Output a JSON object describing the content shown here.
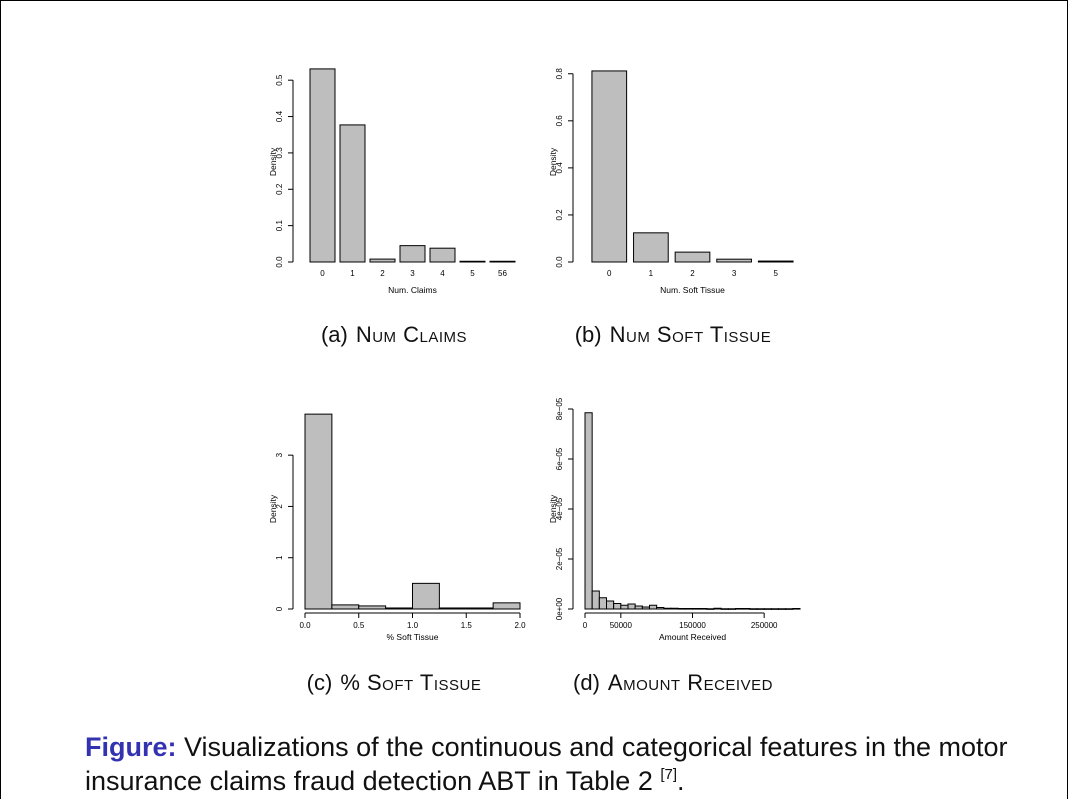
{
  "caption": {
    "label": "Figure:",
    "text": "Visualizations of the continuous and categorical features in the motor insurance claims fraud detection ABT in Table 2",
    "ref": "[7]",
    "end": "."
  },
  "chart_data": [
    {
      "type": "bar",
      "subcaption_label": "(a)",
      "subcaption_title": "Num Claims",
      "xlabel": "Num. Claims",
      "ylabel": "Density",
      "categories": [
        "0",
        "1",
        "2",
        "3",
        "4",
        "5",
        "56"
      ],
      "values": [
        0.531,
        0.377,
        0.008,
        0.045,
        0.038,
        0.002,
        0.002
      ],
      "ylim": [
        0,
        0.55
      ],
      "yticks": [
        "0.0",
        "0.1",
        "0.2",
        "0.3",
        "0.4",
        "0.5"
      ],
      "ytick_values": [
        0,
        0.1,
        0.2,
        0.3,
        0.4,
        0.5
      ]
    },
    {
      "type": "bar",
      "subcaption_label": "(b)",
      "subcaption_title": "Num Soft Tissue",
      "xlabel": "Num. Soft Tissue",
      "ylabel": "Density",
      "categories": [
        "0",
        "1",
        "2",
        "3",
        "5"
      ],
      "values": [
        0.812,
        0.124,
        0.042,
        0.012,
        0.004
      ],
      "ylim": [
        0,
        0.85
      ],
      "yticks": [
        "0.0",
        "0.2",
        "0.4",
        "0.6",
        "0.8"
      ],
      "ytick_values": [
        0,
        0.2,
        0.4,
        0.6,
        0.8
      ]
    },
    {
      "type": "bar",
      "histogram": true,
      "subcaption_label": "(c)",
      "subcaption_title": "% Soft Tissue",
      "xlabel": "% Soft Tissue",
      "ylabel": "Density",
      "bin_edges": [
        0,
        0.25,
        0.5,
        0.75,
        1.0,
        1.25,
        1.5,
        1.75,
        2.0
      ],
      "values": [
        3.8,
        0.08,
        0.06,
        0.02,
        0.5,
        0.02,
        0.02,
        0.12
      ],
      "xlim": [
        0,
        2.0
      ],
      "ylim": [
        0,
        3.9
      ],
      "xticks": [
        "0.0",
        "0.5",
        "1.0",
        "1.5",
        "2.0"
      ],
      "xtick_values": [
        0,
        0.5,
        1.0,
        1.5,
        2.0
      ],
      "yticks": [
        "0",
        "1",
        "2",
        "3"
      ],
      "ytick_values": [
        0,
        1,
        2,
        3
      ]
    },
    {
      "type": "bar",
      "histogram": true,
      "subcaption_label": "(d)",
      "subcaption_title": "Amount Received",
      "xlabel": "Amount Received",
      "ylabel": "Density",
      "bin_edges": [
        0,
        10000,
        20000,
        30000,
        40000,
        50000,
        60000,
        70000,
        80000,
        90000,
        100000,
        110000,
        120000,
        130000,
        140000,
        150000,
        160000,
        170000,
        180000,
        190000,
        200000,
        210000,
        220000,
        230000,
        240000,
        250000,
        260000,
        270000,
        280000,
        290000,
        300000
      ],
      "values": [
        7.85e-05,
        7.2e-06,
        4.5e-06,
        3.2e-06,
        2.2e-06,
        1.5e-06,
        2e-06,
        1.2e-06,
        8e-07,
        1.5e-06,
        6e-07,
        3e-07,
        3e-07,
        2e-07,
        2e-07,
        2e-07,
        2e-07,
        1e-07,
        3e-07,
        1e-07,
        1e-07,
        2e-07,
        2e-07,
        1e-07,
        1e-07,
        1e-07,
        1e-07,
        1e-07,
        1e-07,
        2e-07
      ],
      "xlim": [
        0,
        300000
      ],
      "ylim": [
        0,
        8e-05
      ],
      "xticks": [
        "0",
        "50000",
        "150000",
        "250000"
      ],
      "xtick_values": [
        0,
        50000,
        150000,
        250000
      ],
      "yticks": [
        "0e+00",
        "2e−05",
        "4e−05",
        "6e−05",
        "8e−05"
      ],
      "ytick_values": [
        0,
        2e-05,
        4e-05,
        6e-05,
        8e-05
      ]
    }
  ]
}
